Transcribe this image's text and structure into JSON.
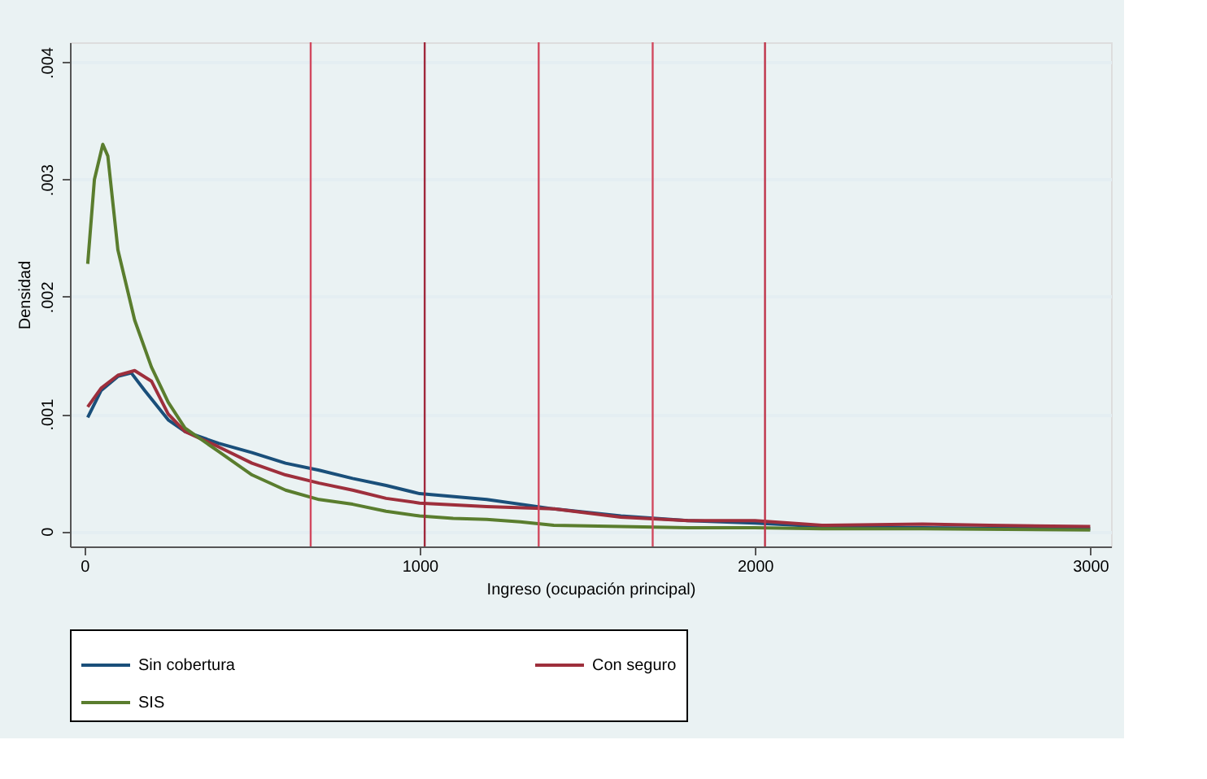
{
  "chart_data": {
    "type": "line",
    "xlabel": "Ingreso (ocupación principal)",
    "ylabel": "Densidad",
    "xlim": [
      -43,
      3062
    ],
    "xticks": [
      0,
      1000,
      2000,
      3000
    ],
    "ylim": [
      -0.00013,
      0.00417
    ],
    "yticks": [
      0,
      {
        "value": 0.001,
        "label": ".001"
      },
      {
        "value": 0.002,
        "label": ".002"
      },
      {
        "value": 0.003,
        "label": ".003"
      },
      {
        "value": 0.004,
        "label": ".004"
      }
    ],
    "grid": "y",
    "legend": "bottom",
    "line_style": "solid",
    "ref_lines": [
      {
        "axis": "x",
        "value": 675,
        "color": "#d2495f"
      },
      {
        "axis": "x",
        "value": 1015,
        "color": "#a0283c"
      },
      {
        "axis": "x",
        "value": 1355,
        "color": "#d2495f"
      },
      {
        "axis": "x",
        "value": 1695,
        "color": "#d2495f"
      },
      {
        "axis": "x",
        "value": 2030,
        "color": "#c0344a"
      }
    ],
    "series": [
      {
        "name": "Sin cobertura",
        "color": "#1a4f7a",
        "x": [
          10,
          50,
          100,
          140,
          180,
          250,
          300,
          400,
          500,
          600,
          700,
          800,
          900,
          1000,
          1200,
          1400,
          1600,
          1800,
          2000,
          2200,
          2500,
          3000
        ],
        "values": [
          0.00097,
          0.0012,
          0.00132,
          0.00135,
          0.0012,
          0.00095,
          0.00085,
          0.00075,
          0.00067,
          0.00058,
          0.00052,
          0.00045,
          0.00039,
          0.00032,
          0.00027,
          0.00019,
          0.00013,
          9e-05,
          7e-05,
          4e-05,
          3e-05,
          2e-05
        ]
      },
      {
        "name": "Con seguro",
        "color": "#9e2f3c",
        "x": [
          10,
          50,
          100,
          150,
          200,
          250,
          300,
          400,
          500,
          600,
          700,
          800,
          900,
          1000,
          1200,
          1400,
          1600,
          1800,
          2000,
          2200,
          2500,
          2700,
          3000
        ],
        "values": [
          0.00106,
          0.00122,
          0.00133,
          0.00137,
          0.00128,
          0.001,
          0.00085,
          0.00072,
          0.00058,
          0.00048,
          0.00041,
          0.00035,
          0.00028,
          0.00024,
          0.00021,
          0.00019,
          0.00012,
          9e-05,
          9e-05,
          5e-05,
          6e-05,
          5e-05,
          4e-05
        ]
      },
      {
        "name": "SIS",
        "color": "#5a7d2e",
        "x": [
          10,
          30,
          55,
          70,
          100,
          150,
          200,
          250,
          300,
          400,
          500,
          600,
          700,
          800,
          900,
          1000,
          1100,
          1200,
          1300,
          1400,
          1600,
          1800,
          2000,
          2200,
          2500,
          3000
        ],
        "values": [
          0.00228,
          0.003,
          0.0033,
          0.0032,
          0.0024,
          0.0018,
          0.0014,
          0.0011,
          0.00088,
          0.00068,
          0.00048,
          0.00035,
          0.00027,
          0.00023,
          0.00017,
          0.00013,
          0.00011,
          0.0001,
          8e-05,
          5e-05,
          4e-05,
          3e-05,
          3e-05,
          2e-05,
          2e-05,
          1e-05
        ]
      }
    ]
  }
}
